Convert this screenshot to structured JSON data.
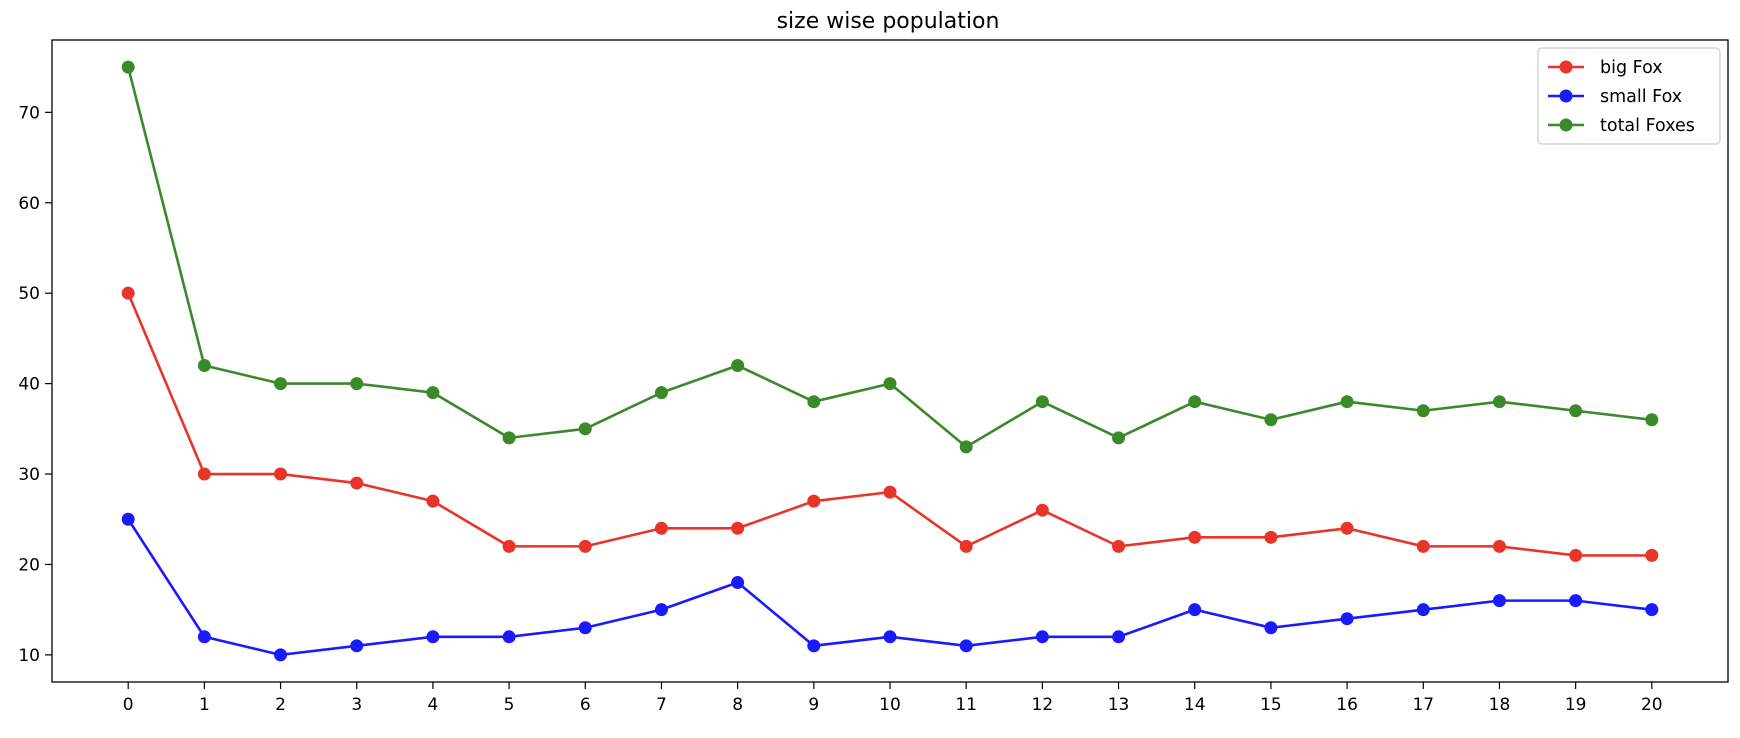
{
  "chart_data": {
    "type": "line",
    "title": "size wise population",
    "xlabel": "",
    "ylabel": "",
    "x": [
      0,
      1,
      2,
      3,
      4,
      5,
      6,
      7,
      8,
      9,
      10,
      11,
      12,
      13,
      14,
      15,
      16,
      17,
      18,
      19,
      20
    ],
    "xlim": [
      -1,
      21
    ],
    "ylim": [
      7,
      78
    ],
    "yticks": [
      10,
      20,
      30,
      40,
      50,
      60,
      70
    ],
    "xticks": [
      0,
      1,
      2,
      3,
      4,
      5,
      6,
      7,
      8,
      9,
      10,
      11,
      12,
      13,
      14,
      15,
      16,
      17,
      18,
      19,
      20
    ],
    "grid": false,
    "legend_position": "top-right",
    "series": [
      {
        "name": "big Fox",
        "color": "#e8352a",
        "marker": "circle",
        "values": [
          50,
          30,
          30,
          29,
          27,
          22,
          22,
          24,
          24,
          27,
          28,
          22,
          26,
          22,
          23,
          23,
          24,
          22,
          22,
          21,
          21
        ]
      },
      {
        "name": "small Fox",
        "color": "#1a1aff",
        "marker": "circle",
        "values": [
          25,
          12,
          10,
          11,
          12,
          12,
          13,
          15,
          18,
          11,
          12,
          11,
          12,
          12,
          15,
          13,
          14,
          15,
          16,
          16,
          15
        ]
      },
      {
        "name": "total Foxes",
        "color": "#3a8a2a",
        "marker": "circle",
        "values": [
          75,
          42,
          40,
          40,
          39,
          34,
          35,
          39,
          42,
          38,
          40,
          33,
          38,
          34,
          38,
          36,
          38,
          37,
          38,
          37,
          36
        ]
      }
    ]
  }
}
